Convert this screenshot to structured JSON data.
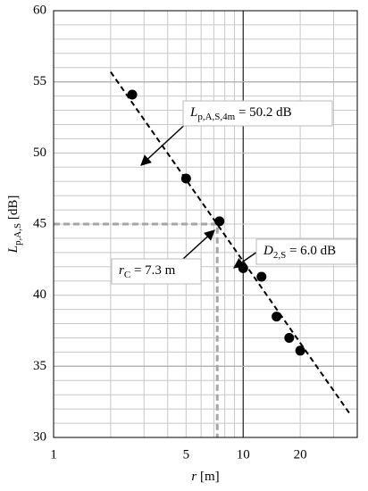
{
  "chart_data": {
    "type": "scatter",
    "x_label": {
      "main": "r",
      "rest": " [m]"
    },
    "y_label": {
      "main": "L",
      "sub": "p,A,S",
      "rest": " [dB]"
    },
    "x": [
      2.6,
      5,
      7.5,
      10,
      12.5,
      15,
      17.5,
      20
    ],
    "values": [
      54.1,
      48.2,
      45.2,
      41.9,
      41.3,
      38.5,
      37.0,
      36.1
    ],
    "color": "#000000",
    "xlog": true,
    "xlim": [
      1,
      40
    ],
    "ylim": [
      30,
      60
    ],
    "xticks": [
      1,
      5,
      10,
      20
    ],
    "yticks": [
      30,
      35,
      40,
      45,
      50,
      55,
      60
    ],
    "xminorticks": [
      2,
      3,
      4,
      6,
      7,
      8,
      9,
      30,
      40
    ],
    "xmajorgrid": [
      10
    ],
    "ymajorgrid": [
      35,
      45,
      55
    ],
    "yminor_step": 1,
    "grid": true,
    "trendline": {
      "x": [
        2.0,
        36.8
      ],
      "y": [
        55.7,
        31.6
      ]
    },
    "reference": {
      "x": 7.3,
      "y": 45
    },
    "annotations": [
      {
        "main": "L",
        "sub": "p,A,S,4m",
        "rest": " = 50.2 dB"
      },
      {
        "main": "D",
        "sub": "2,S",
        "rest": " = 6.0 dB"
      },
      {
        "main": "r",
        "sub": "C",
        "rest": " = 7.3 m"
      }
    ]
  }
}
